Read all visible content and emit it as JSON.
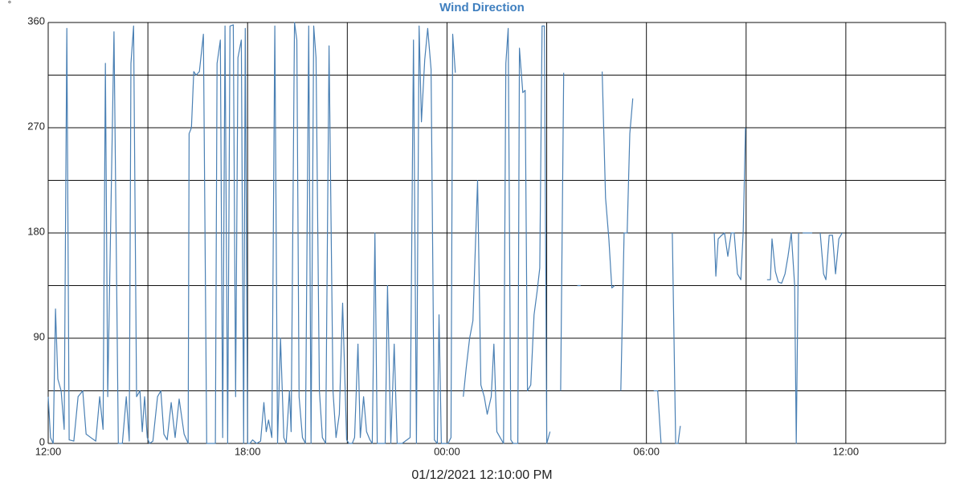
{
  "chart_data": {
    "type": "line",
    "title": "Wind Direction",
    "xlabel": "01/12/2021 12:10:00 PM",
    "ylabel": "°",
    "x": [
      0,
      0.07,
      0.15,
      0.22,
      0.29,
      0.39,
      0.48,
      0.56,
      0.63,
      0.77,
      0.9,
      1.04,
      1.14,
      1.28,
      1.43,
      1.55,
      1.65,
      1.72,
      1.79,
      1.98,
      2.11,
      2.23,
      2.35,
      2.44,
      2.49,
      2.57,
      2.66,
      2.76,
      2.83,
      2.9,
      2.98,
      3.05,
      3.15,
      3.29,
      3.39,
      3.48,
      3.58,
      3.7,
      3.82,
      3.94,
      4.09,
      4.21,
      4.24,
      4.31,
      4.38,
      4.45,
      4.55,
      4.67,
      4.77,
      4.89,
      5.03,
      5.08,
      5.18,
      5.25,
      5.32,
      5.4,
      5.47,
      5.57,
      5.64,
      5.71,
      5.81,
      5.88,
      5.93,
      6,
      6.07,
      6.15,
      6.27,
      6.39,
      6.49,
      6.56,
      6.63,
      6.73,
      6.82,
      6.9,
      6.99,
      7.09,
      7.16,
      7.26,
      7.31,
      7.41,
      7.48,
      7.55,
      7.65,
      7.74,
      7.84,
      7.91,
      7.99,
      8.06,
      8.16,
      8.25,
      8.35,
      8.45,
      8.57,
      8.66,
      8.76,
      8.86,
      8.98,
      9.05,
      9.15,
      9.22,
      9.32,
      9.39,
      9.49,
      9.58,
      9.68,
      9.75,
      9.83,
      9.9,
      10.02,
      10.14,
      10.21,
      10.31,
      10.41,
      10.5,
      10.65,
      10.89,
      10.99,
      11.08,
      11.16,
      11.23,
      11.33,
      11.42,
      11.52,
      11.62,
      11.71,
      11.76,
      11.83,
      11.93,
      12.03,
      12.12,
      12.17,
      12.25,
      12.37,
      12.49,
      12.58,
      12.68,
      12.78,
      12.92,
      13.02,
      13.12,
      13.21,
      13.33,
      13.41,
      13.5,
      13.6,
      13.7,
      13.77,
      13.84,
      13.92,
      13.99,
      14.06,
      14.13,
      14.18,
      14.28,
      14.35,
      14.42,
      14.52,
      14.62,
      14.71,
      14.79,
      14.86,
      14.93,
      15,
      15.1,
      15.25,
      15.42,
      15.51,
      15.7,
      15.92,
      16.02,
      16.3,
      16.67,
      16.77,
      16.87,
      16.96,
      17.04,
      17.13,
      17.23,
      17.33,
      17.42,
      17.5,
      17.59,
      17.9,
      18.22,
      18.34,
      18.44,
      18.6,
      18.78,
      18.88,
      18.95,
      19.02,
      19.5,
      20.04,
      20.09,
      20.16,
      20.26,
      20.35,
      20.45,
      20.55,
      20.64,
      20.74,
      20.84,
      20.91,
      20.98,
      21.3,
      21.63,
      21.73,
      21.78,
      21.88,
      21.97,
      22.07,
      22.17,
      22.26,
      22.36,
      22.46,
      22.51,
      22.58,
      22.64,
      22.7,
      22.99,
      23.1,
      23.23,
      23.33,
      23.4,
      23.5,
      23.6,
      23.69,
      23.79,
      23.89
    ],
    "series": [
      {
        "color": "#4a80b4",
        "values": [
          40,
          5,
          0,
          115,
          55,
          45,
          12,
          355,
          3,
          2,
          40,
          45,
          8,
          5,
          2,
          40,
          12,
          325,
          40,
          352,
          0,
          0,
          40,
          2,
          325,
          357,
          40,
          45,
          10,
          40,
          5,
          0,
          2,
          40,
          45,
          8,
          3,
          35,
          5,
          38,
          8,
          0,
          265,
          270,
          318,
          315,
          318,
          350,
          0,
          0,
          0,
          325,
          345,
          5,
          357,
          0,
          357,
          358,
          40,
          330,
          345,
          0,
          355,
          0,
          0,
          3,
          0,
          2,
          35,
          10,
          20,
          5,
          357,
          0,
          90,
          5,
          0,
          45,
          10,
          360,
          345,
          40,
          5,
          0,
          357,
          0,
          357,
          330,
          45,
          5,
          0,
          340,
          45,
          5,
          25,
          120,
          3,
          0,
          0,
          5,
          85,
          5,
          40,
          10,
          3,
          0,
          180,
          0,
          0,
          0,
          135,
          0,
          85,
          0,
          0,
          5,
          345,
          0,
          357,
          275,
          328,
          355,
          320,
          3,
          0,
          110,
          0,
          0,
          0,
          5,
          350,
          317,
          null,
          40,
          65,
          90,
          105,
          225,
          50,
          40,
          25,
          40,
          85,
          10,
          5,
          0,
          325,
          355,
          3,
          0,
          0,
          0,
          338,
          300,
          302,
          45,
          50,
          110,
          130,
          150,
          357,
          357,
          0,
          10,
          null,
          45,
          317,
          null,
          135,
          135,
          null,
          318,
          210,
          175,
          133,
          135,
          null,
          45,
          180,
          180,
          265,
          295,
          null,
          45,
          45,
          0,
          null,
          180,
          0,
          0,
          15,
          null,
          180,
          143,
          175,
          178,
          180,
          160,
          180,
          180,
          145,
          140,
          180,
          270,
          null,
          140,
          140,
          175,
          147,
          138,
          137,
          145,
          160,
          180,
          135,
          0,
          180,
          null,
          180,
          180,
          null,
          180,
          145,
          140,
          178,
          178,
          145,
          175,
          180
        ]
      }
    ],
    "xlim": [
      0,
      27
    ],
    "ylim": [
      0,
      360
    ],
    "xticks": [
      {
        "value": 0,
        "label": "12:00"
      },
      {
        "value": 6,
        "label": "18:00"
      },
      {
        "value": 12,
        "label": "00:00"
      },
      {
        "value": 18,
        "label": "06:00"
      },
      {
        "value": 24,
        "label": "12:00"
      }
    ],
    "yticks": [
      0,
      90,
      180,
      270,
      360
    ],
    "xgrid": [
      0,
      3,
      6,
      9,
      12,
      15,
      18,
      21,
      24,
      27
    ],
    "ygrid": [
      0,
      45,
      90,
      135,
      180,
      225,
      270,
      315,
      360
    ]
  }
}
